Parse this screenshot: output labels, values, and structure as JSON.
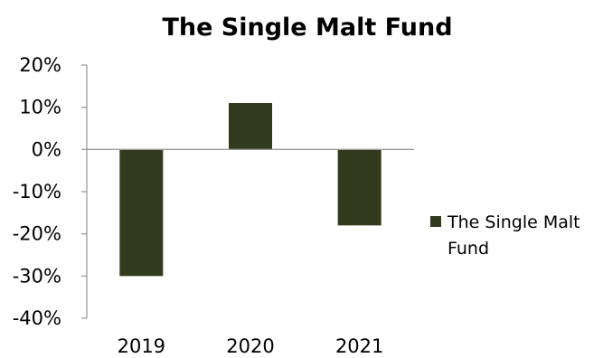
{
  "chart_data": {
    "type": "bar",
    "title": "The Single Malt Fund",
    "categories": [
      "2019",
      "2020",
      "2021"
    ],
    "series": [
      {
        "name": "The Single Malt Fund",
        "values": [
          -30,
          11,
          -18
        ],
        "color": "#323a1e"
      }
    ],
    "y_ticks": [
      "20%",
      "10%",
      "0%",
      "-10%",
      "-20%",
      "-30%",
      "-40%"
    ],
    "ylim": [
      -40,
      20
    ],
    "y_unit": "%",
    "grid": false,
    "legend": {
      "position": "right",
      "lines": [
        "The Single Malt",
        "Fund"
      ]
    }
  }
}
